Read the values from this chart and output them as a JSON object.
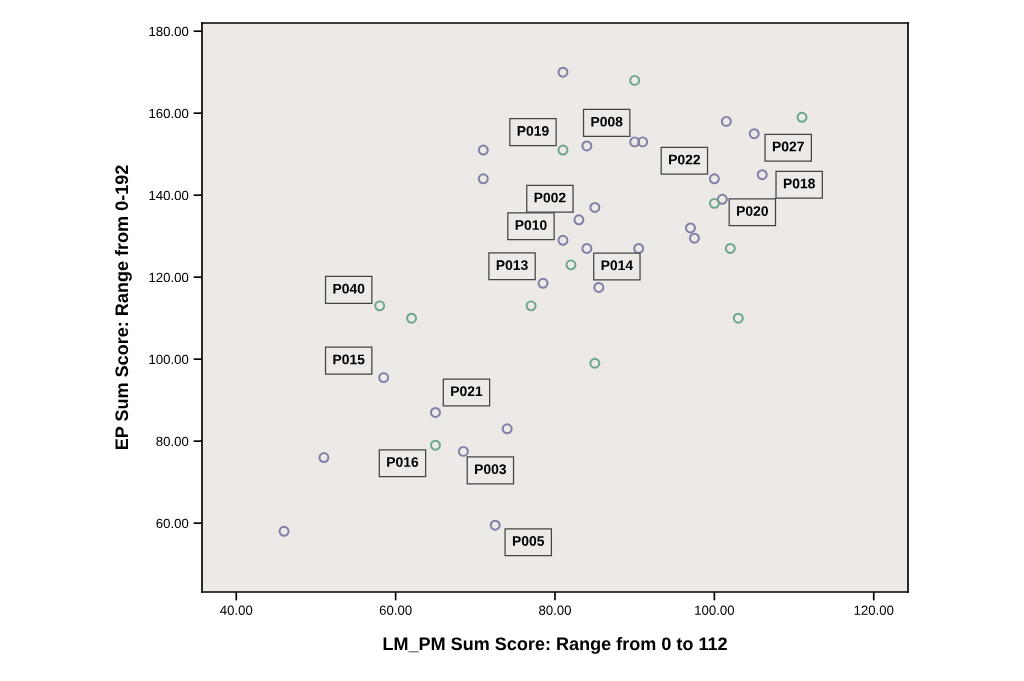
{
  "chart_data": {
    "type": "scatter",
    "xlabel": "LM_PM Sum Score: Range from 0 to 112",
    "ylabel": "EP Sum Score: Range from 0-192",
    "xlim": [
      35.7,
      124.3
    ],
    "ylim": [
      43.2,
      182
    ],
    "xticks": [
      {
        "value": 40,
        "label": "40.00"
      },
      {
        "value": 60,
        "label": "60.00"
      },
      {
        "value": 80,
        "label": "80.00"
      },
      {
        "value": 100,
        "label": "100.00"
      },
      {
        "value": 120,
        "label": "120.00"
      }
    ],
    "yticks": [
      {
        "value": 60,
        "label": "60.00"
      },
      {
        "value": 80,
        "label": "80.00"
      },
      {
        "value": 100,
        "label": "100.00"
      },
      {
        "value": 120,
        "label": "120.00"
      },
      {
        "value": 140,
        "label": "140.00"
      },
      {
        "value": 160,
        "label": "160.00"
      },
      {
        "value": 180,
        "label": "180.00"
      }
    ],
    "marker": "circle",
    "grid": false,
    "legend": false,
    "series": [
      {
        "color": "#7f7fa8",
        "x": [
          46,
          51,
          58.5,
          65,
          68.5,
          72.5,
          74,
          71,
          71,
          78.5,
          81,
          81,
          83,
          84,
          84,
          85,
          85.5,
          90,
          91,
          90.5,
          97,
          97.5,
          100,
          101,
          101.5,
          105,
          106
        ],
        "values": [
          58,
          76,
          95.5,
          87,
          77.5,
          59.5,
          83,
          151,
          144,
          118.5,
          170,
          129,
          134,
          152,
          127,
          137,
          117.5,
          153,
          153,
          127,
          132,
          129.5,
          144,
          139,
          158,
          155,
          145
        ]
      },
      {
        "color": "#6ca68a",
        "x": [
          58,
          62,
          65,
          77,
          81,
          82,
          85,
          90,
          100,
          102,
          103,
          111
        ],
        "values": [
          113,
          110,
          79,
          113,
          151,
          123,
          99,
          168,
          138,
          127,
          110,
          159
        ]
      }
    ],
    "annotations": [
      {
        "text": "P008",
        "x": 90,
        "y": 153
      },
      {
        "text": "P019",
        "x": 81,
        "y": 151
      },
      {
        "text": "P022",
        "x": 100,
        "y": 144
      },
      {
        "text": "P027",
        "x": 105,
        "y": 155
      },
      {
        "text": "P018",
        "x": 106,
        "y": 145
      },
      {
        "text": "P020",
        "x": 101,
        "y": 139
      },
      {
        "text": "P002",
        "x": 83,
        "y": 134
      },
      {
        "text": "P010",
        "x": 81,
        "y": 129
      },
      {
        "text": "P013",
        "x": 78.5,
        "y": 118.5
      },
      {
        "text": "P014",
        "x": 84,
        "y": 127
      },
      {
        "text": "P040",
        "x": 58,
        "y": 113
      },
      {
        "text": "P015",
        "x": 58.5,
        "y": 95.5
      },
      {
        "text": "P021",
        "x": 65,
        "y": 87
      },
      {
        "text": "P016",
        "x": 65,
        "y": 79
      },
      {
        "text": "P003",
        "x": 68.5,
        "y": 77.5
      },
      {
        "text": "P005",
        "x": 72.5,
        "y": 59.5
      }
    ]
  }
}
